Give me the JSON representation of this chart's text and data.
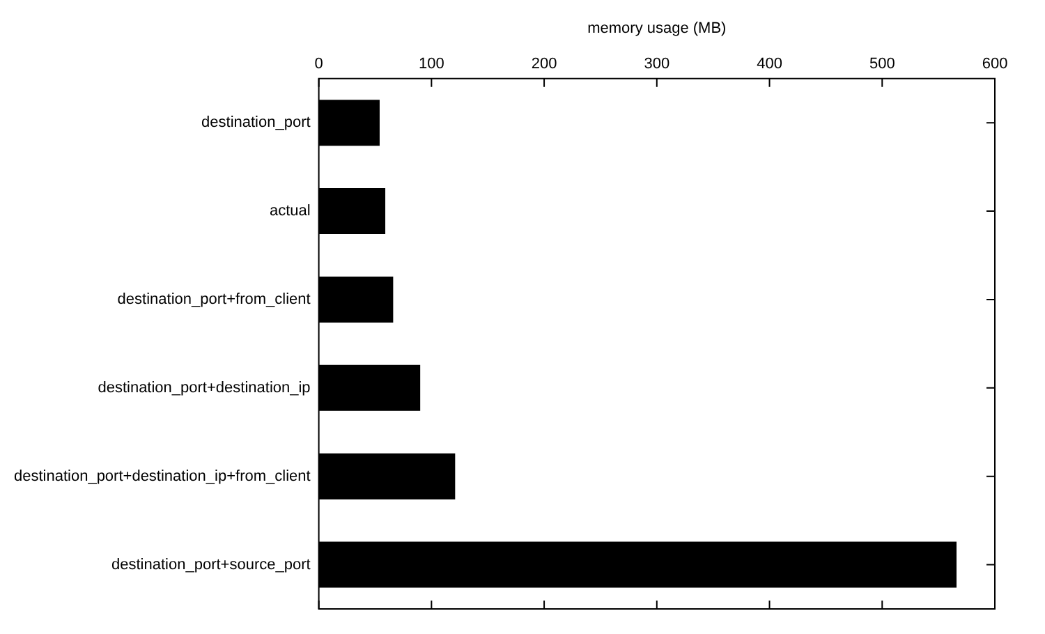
{
  "chart_data": {
    "type": "bar",
    "orientation": "horizontal",
    "xlabel": "memory usage (MB)",
    "categories": [
      "destination_port",
      "actual",
      "destination_port+from_client",
      "destination_port+destination_ip",
      "destination_port+destination_ip+from_client",
      "destination_port+source_port"
    ],
    "values": [
      54,
      59,
      66,
      90,
      121,
      566
    ],
    "color": "#000000",
    "xlim": [
      0,
      600
    ],
    "xticks": [
      0,
      100,
      200,
      300,
      400,
      500,
      600
    ]
  }
}
